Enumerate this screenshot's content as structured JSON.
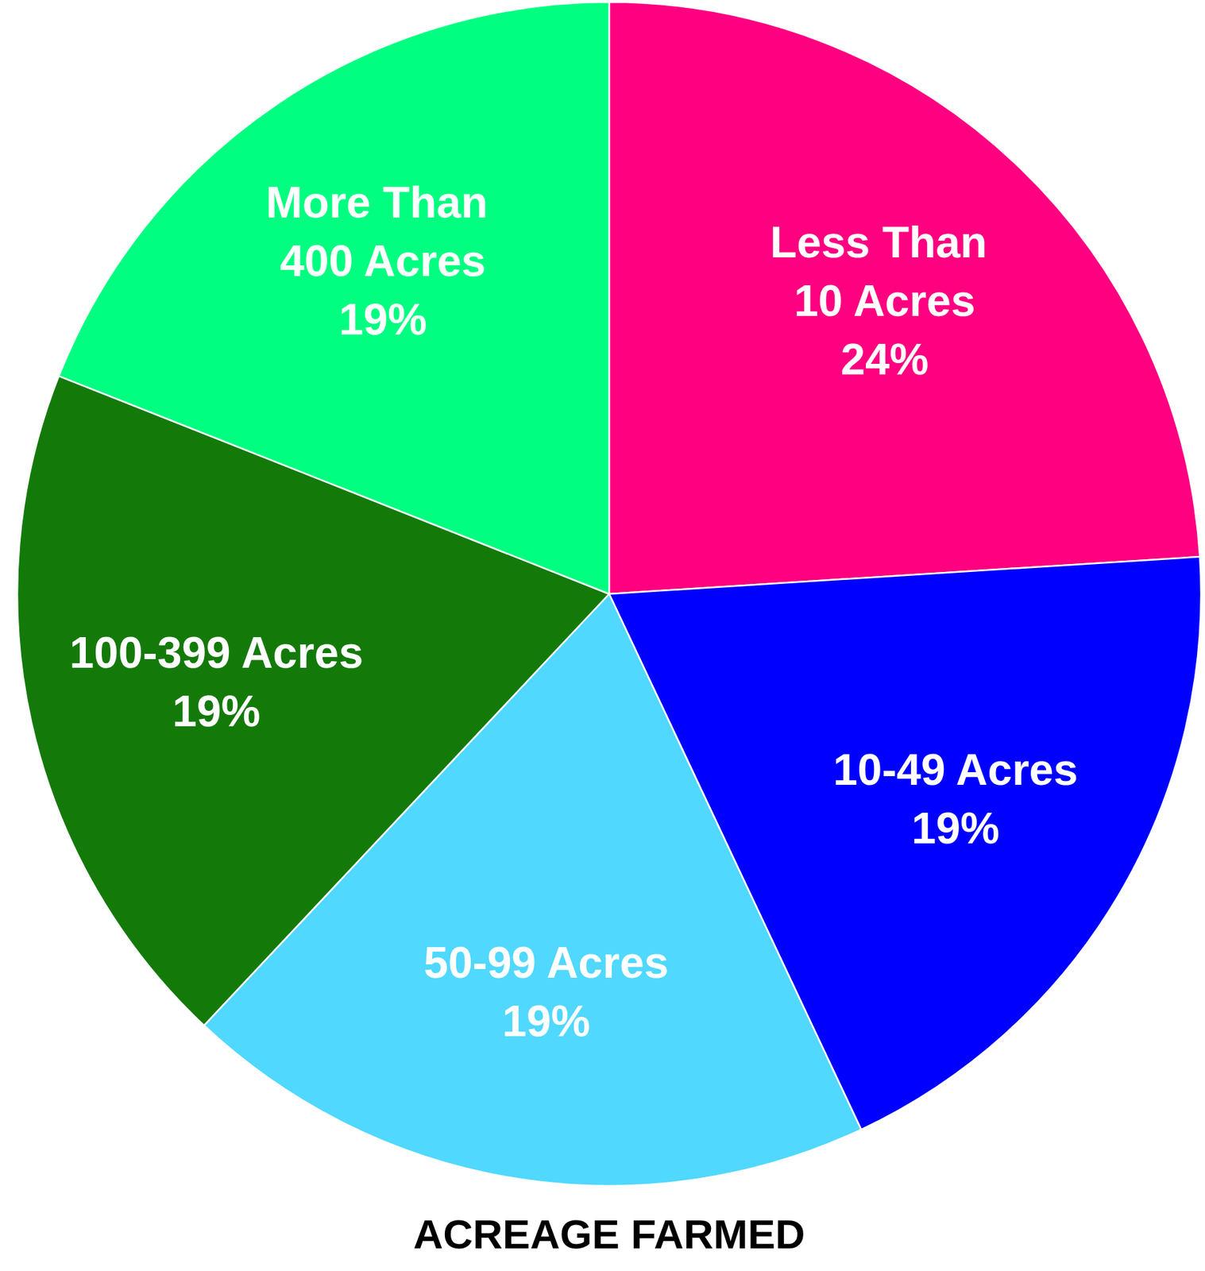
{
  "chart_data": {
    "type": "pie",
    "title": "ACREAGE FARMED",
    "categories": [
      "Less Than 10 Acres",
      "10-49 Acres",
      "50-99 Acres",
      "100-399 Acres",
      "More Than 400 Acres"
    ],
    "values": [
      24,
      19,
      19,
      19,
      19
    ],
    "value_labels": [
      "24%",
      "19%",
      "19%",
      "19%",
      "19%"
    ],
    "colors": [
      "#ff0080",
      "#0000ff",
      "#50d8ff",
      "#137a0a",
      "#00ff80"
    ],
    "data_labels": true
  }
}
